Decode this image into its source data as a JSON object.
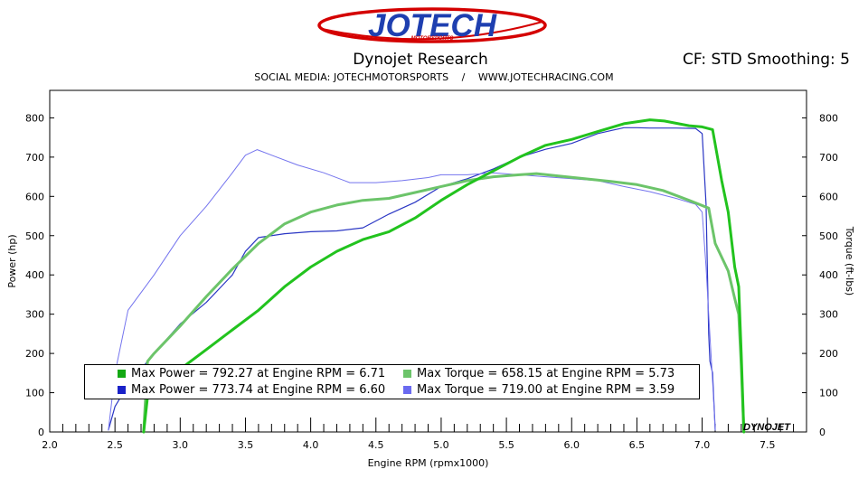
{
  "header": {
    "logo_text": "JOTECH",
    "logo_subtext": "MOTORSPORTS",
    "title": "Dynojet Research",
    "cf_smoothing": "CF: STD Smoothing: 5",
    "social_line": "SOCIAL MEDIA: JOTECHMOTORSPORTS    /    WWW.JOTECHRACING.COM",
    "watermark": "DYNOJET"
  },
  "colors": {
    "power_green": "#22c31e",
    "torque_green": "#6cc46a",
    "power_blue": "#2a36c4",
    "torque_blue": "#7474ee",
    "swatch_power_green": "#12a812",
    "swatch_torque_green": "#6cc46a",
    "swatch_power_blue": "#1a22c8",
    "swatch_torque_blue": "#6a6af0"
  },
  "legend": [
    {
      "key": "power-green",
      "label": "Max Power = 792.27 at Engine RPM = 6.71"
    },
    {
      "key": "torque-green",
      "label": "Max Torque = 658.15 at Engine RPM = 5.73"
    },
    {
      "key": "power-blue",
      "label": "Max Power = 773.74 at Engine RPM = 6.60"
    },
    {
      "key": "torque-blue",
      "label": "Max Torque = 719.00 at Engine RPM = 3.59"
    }
  ],
  "chart_data": {
    "type": "line",
    "title": "Dynojet Research",
    "xlabel": "Engine RPM (rpmx1000)",
    "ylabel": "Power (hp)",
    "y2label": "Torque (ft-lbs)",
    "xlim": [
      2.0,
      7.8
    ],
    "ylim": [
      0,
      870
    ],
    "xticks": [
      2.0,
      2.5,
      3.0,
      3.5,
      4.0,
      4.5,
      5.0,
      5.5,
      6.0,
      6.5,
      7.0,
      7.5
    ],
    "xtick_labels": [
      "2.0",
      "2.5",
      "3.0",
      "3.5",
      "4.0",
      "4.5",
      "5.0",
      "5.5",
      "6.0",
      "6.5",
      "7.0",
      "7.5"
    ],
    "yticks": [
      0,
      100,
      200,
      300,
      400,
      500,
      600,
      700,
      800
    ],
    "ytick_labels": [
      "0",
      "100",
      "200",
      "300",
      "400",
      "500",
      "600",
      "700",
      "800"
    ],
    "grid": false,
    "legend_position": "bottom-left",
    "series": [
      {
        "name": "Max Power = 773.74 at Engine RPM = 6.60",
        "key": "power-blue",
        "color": "#2a36c4",
        "width": 1.2,
        "x": [
          2.45,
          2.5,
          2.6,
          2.8,
          3.0,
          3.2,
          3.4,
          3.5,
          3.6,
          3.8,
          4.0,
          4.2,
          4.4,
          4.6,
          4.8,
          5.0,
          5.2,
          5.4,
          5.6,
          5.8,
          6.0,
          6.2,
          6.4,
          6.5,
          6.6,
          6.8,
          6.95,
          7.0,
          7.03,
          7.05,
          7.06,
          7.08,
          7.1
        ],
        "y": [
          5,
          65,
          120,
          200,
          275,
          330,
          400,
          460,
          495,
          505,
          510,
          512,
          520,
          555,
          585,
          625,
          645,
          670,
          700,
          720,
          735,
          760,
          775,
          775,
          774,
          774,
          773,
          760,
          580,
          250,
          180,
          150,
          5
        ]
      },
      {
        "name": "Max Torque = 719.00 at Engine RPM = 3.59",
        "key": "torque-blue",
        "color": "#7474ee",
        "width": 1.0,
        "x": [
          2.45,
          2.5,
          2.6,
          2.8,
          3.0,
          3.2,
          3.4,
          3.5,
          3.59,
          3.7,
          3.9,
          4.1,
          4.3,
          4.5,
          4.7,
          4.9,
          5.0,
          5.2,
          5.4,
          5.6,
          5.8,
          6.0,
          6.2,
          6.4,
          6.6,
          6.8,
          6.95,
          7.0,
          7.03,
          7.05,
          7.08,
          7.1
        ],
        "y": [
          5,
          150,
          310,
          400,
          500,
          575,
          660,
          705,
          719,
          705,
          680,
          660,
          635,
          635,
          640,
          648,
          655,
          655,
          660,
          655,
          650,
          645,
          640,
          625,
          612,
          595,
          580,
          560,
          420,
          300,
          130,
          5
        ]
      },
      {
        "name": "Max Torque = 658.15 at Engine RPM = 5.73",
        "key": "torque-green",
        "color": "#6cc46a",
        "width": 3.0,
        "x": [
          2.72,
          2.75,
          2.8,
          3.0,
          3.2,
          3.4,
          3.6,
          3.8,
          4.0,
          4.2,
          4.4,
          4.6,
          4.8,
          5.0,
          5.2,
          5.4,
          5.6,
          5.73,
          5.9,
          6.1,
          6.3,
          6.5,
          6.7,
          6.9,
          7.05,
          7.1,
          7.2,
          7.25,
          7.28,
          7.3,
          7.32
        ],
        "y": [
          0,
          180,
          200,
          270,
          345,
          415,
          480,
          530,
          560,
          578,
          590,
          595,
          610,
          625,
          640,
          650,
          655,
          658,
          652,
          645,
          638,
          630,
          615,
          590,
          570,
          480,
          410,
          340,
          300,
          170,
          0
        ]
      },
      {
        "name": "Max Power = 792.27 at Engine RPM = 6.71",
        "key": "power-green",
        "color": "#22c31e",
        "width": 3.0,
        "x": [
          2.72,
          2.75,
          2.8,
          3.0,
          3.2,
          3.4,
          3.6,
          3.8,
          4.0,
          4.2,
          4.4,
          4.6,
          4.8,
          5.0,
          5.2,
          5.4,
          5.6,
          5.8,
          6.0,
          6.2,
          6.4,
          6.6,
          6.71,
          6.9,
          7.0,
          7.08,
          7.15,
          7.2,
          7.25,
          7.28,
          7.3,
          7.32
        ],
        "y": [
          0,
          90,
          110,
          160,
          210,
          260,
          310,
          370,
          420,
          460,
          490,
          510,
          545,
          590,
          630,
          665,
          700,
          730,
          745,
          765,
          785,
          795,
          792,
          780,
          777,
          770,
          640,
          560,
          420,
          370,
          200,
          0
        ]
      }
    ]
  }
}
